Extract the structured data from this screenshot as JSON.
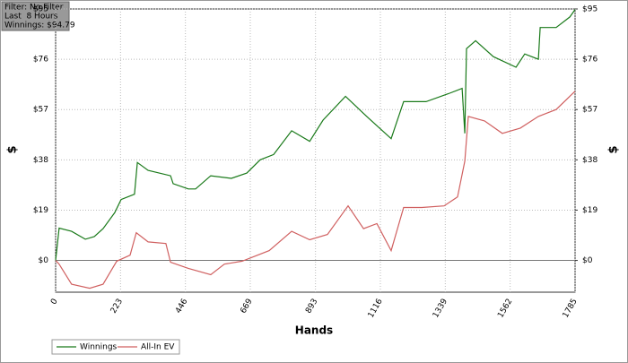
{
  "chart_data": {
    "type": "line",
    "annotations": [
      "Filter: No Filter",
      "Last  8 Hours",
      "Winnings: $94.79"
    ],
    "xlabel": "Hands",
    "ylabel": "$",
    "y2label": "$",
    "xlim": [
      0,
      1785
    ],
    "xticks": [
      0,
      223,
      446,
      669,
      893,
      1116,
      1339,
      1562,
      1785
    ],
    "ylim": [
      -12,
      95
    ],
    "yticks": [
      {
        "value": 0,
        "label": "$0"
      },
      {
        "value": 19,
        "label": "$19"
      },
      {
        "value": 38,
        "label": "$38"
      },
      {
        "value": 57,
        "label": "$57"
      },
      {
        "value": 76,
        "label": "$76"
      },
      {
        "value": 95,
        "label": "$95"
      }
    ],
    "y2lim": [
      -12,
      95
    ],
    "y2ticks": [
      {
        "value": 0,
        "label": "$0"
      },
      {
        "value": 19,
        "label": "$19"
      },
      {
        "value": 38,
        "label": "$38"
      },
      {
        "value": 57,
        "label": "$57"
      },
      {
        "value": 76,
        "label": "$76"
      },
      {
        "value": 95,
        "label": "$95"
      }
    ],
    "grid": true,
    "legend": "bottom-left",
    "series": [
      {
        "name": "Winnings",
        "color": "#1a7a1a",
        "x": [
          0,
          12,
          55,
          102,
          133,
          163,
          203,
          225,
          271,
          281,
          318,
          395,
          404,
          456,
          481,
          533,
          604,
          657,
          703,
          749,
          811,
          873,
          919,
          996,
          1073,
          1153,
          1196,
          1273,
          1350,
          1397,
          1406,
          1412,
          1443,
          1504,
          1582,
          1612,
          1659,
          1665,
          1720,
          1767,
          1785
        ],
        "values": [
          0,
          12.2,
          11,
          8,
          9,
          12,
          18,
          23,
          25,
          37,
          34,
          32,
          29,
          27,
          27,
          32,
          31,
          33,
          38,
          40,
          49,
          45,
          53,
          62,
          54,
          46,
          60,
          60,
          63,
          65,
          48,
          80,
          83,
          77,
          73,
          78,
          76,
          88,
          88,
          92,
          94.79
        ]
      },
      {
        "name": "All-In EV",
        "color": "#d06060",
        "x": [
          0,
          12,
          55,
          117,
          163,
          210,
          256,
          277,
          318,
          379,
          395,
          456,
          533,
          580,
          641,
          734,
          811,
          873,
          934,
          1005,
          1058,
          1104,
          1153,
          1196,
          1258,
          1335,
          1381,
          1406,
          1418,
          1474,
          1535,
          1597,
          1659,
          1720,
          1785
        ],
        "values": [
          0,
          -1.4,
          -9,
          -10.5,
          -9,
          -0.3,
          2,
          10.5,
          7,
          6.4,
          -0.7,
          -3,
          -5.4,
          -1.4,
          -0.3,
          3.7,
          11,
          7.8,
          9.8,
          20.6,
          12,
          13.9,
          3.7,
          20,
          20,
          20.6,
          24,
          37.5,
          54.4,
          52.7,
          48,
          50,
          54.4,
          57,
          63.9
        ]
      }
    ]
  }
}
